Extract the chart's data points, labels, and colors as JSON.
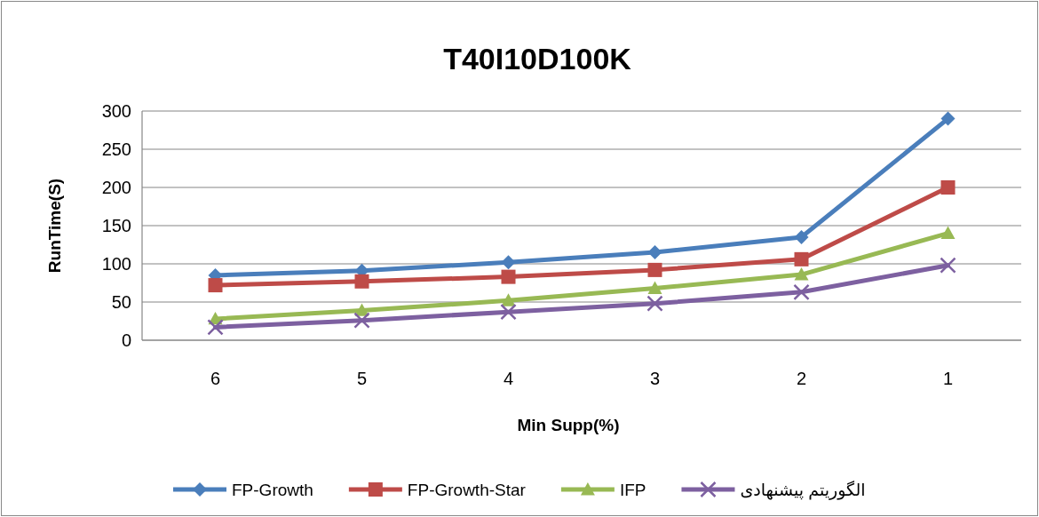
{
  "chart_data": {
    "type": "line",
    "title": "T40I10D100K",
    "xlabel": "Min Supp(%)",
    "ylabel": "RunTime(S)",
    "categories": [
      "6",
      "5",
      "4",
      "3",
      "2",
      "1"
    ],
    "series": [
      {
        "name": "FP-Growth",
        "color": "#4a7ebb",
        "marker": "diamond",
        "values": [
          85,
          91,
          102,
          115,
          135,
          290
        ]
      },
      {
        "name": "FP-Growth-Star",
        "color": "#be4b48",
        "marker": "square",
        "values": [
          72,
          77,
          83,
          92,
          106,
          200
        ]
      },
      {
        "name": "IFP",
        "color": "#98b954",
        "marker": "triangle",
        "values": [
          28,
          39,
          52,
          68,
          86,
          140
        ]
      },
      {
        "name": "الگوریتم پیشنهادی",
        "color": "#7d60a0",
        "marker": "cross",
        "values": [
          17,
          26,
          37,
          48,
          63,
          98
        ]
      }
    ],
    "ylim": [
      0,
      300
    ],
    "yticks": [
      0,
      50,
      100,
      150,
      200,
      250,
      300
    ],
    "grid": "y",
    "legend": "bottom"
  }
}
